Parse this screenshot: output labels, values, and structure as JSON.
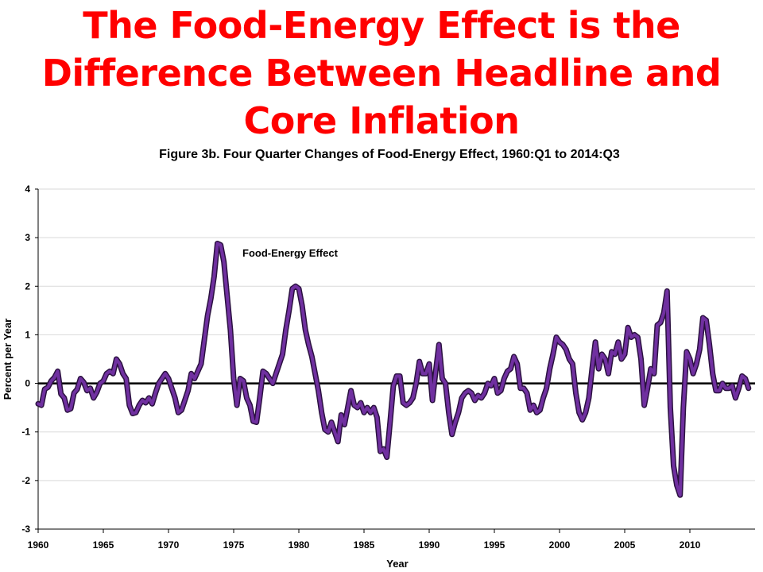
{
  "slide": {
    "title_lines": [
      "The Food-Energy Effect is the",
      "Difference Between Headline and",
      "Core Inflation"
    ]
  },
  "chart_data": {
    "type": "line",
    "title": "Figure 3b. Four Quarter Changes of Food-Energy Effect, 1960:Q1 to 2014:Q3",
    "xlabel": "Year",
    "ylabel": "Percent per Year",
    "xlim": [
      1960,
      2015
    ],
    "ylim": [
      -3,
      4
    ],
    "x_ticks": [
      1960,
      1965,
      1970,
      1975,
      1980,
      1985,
      1990,
      1995,
      2000,
      2005,
      2010
    ],
    "y_ticks": [
      4,
      3,
      2,
      1,
      0,
      -1,
      -2,
      -3
    ],
    "grid": "horizontal",
    "zero_line": true,
    "annotation": "Food-Energy Effect",
    "colors": {
      "series_fill": "#7030a0",
      "series_outline": "#2b1140",
      "gridline": "#d9d9d9",
      "zero_line": "#000000",
      "title": "#ff0000"
    },
    "series": [
      {
        "name": "Food-Energy Effect",
        "points": [
          [
            1960.0,
            -0.42
          ],
          [
            1960.25,
            -0.45
          ],
          [
            1960.5,
            -0.12
          ],
          [
            1960.75,
            -0.08
          ],
          [
            1961.0,
            0.05
          ],
          [
            1961.25,
            0.12
          ],
          [
            1961.5,
            0.25
          ],
          [
            1961.75,
            -0.22
          ],
          [
            1962.0,
            -0.3
          ],
          [
            1962.25,
            -0.55
          ],
          [
            1962.5,
            -0.52
          ],
          [
            1962.75,
            -0.2
          ],
          [
            1963.0,
            -0.12
          ],
          [
            1963.25,
            0.1
          ],
          [
            1963.5,
            0.02
          ],
          [
            1963.75,
            -0.15
          ],
          [
            1964.0,
            -0.1
          ],
          [
            1964.25,
            -0.3
          ],
          [
            1964.5,
            -0.18
          ],
          [
            1964.75,
            0.0
          ],
          [
            1965.0,
            0.05
          ],
          [
            1965.25,
            0.2
          ],
          [
            1965.5,
            0.25
          ],
          [
            1965.75,
            0.2
          ],
          [
            1966.0,
            0.5
          ],
          [
            1966.25,
            0.4
          ],
          [
            1966.5,
            0.2
          ],
          [
            1966.75,
            0.1
          ],
          [
            1967.0,
            -0.45
          ],
          [
            1967.25,
            -0.62
          ],
          [
            1967.5,
            -0.6
          ],
          [
            1967.75,
            -0.45
          ],
          [
            1968.0,
            -0.35
          ],
          [
            1968.25,
            -0.4
          ],
          [
            1968.5,
            -0.3
          ],
          [
            1968.75,
            -0.42
          ],
          [
            1969.0,
            -0.2
          ],
          [
            1969.25,
            0.0
          ],
          [
            1969.5,
            0.1
          ],
          [
            1969.75,
            0.2
          ],
          [
            1970.0,
            0.1
          ],
          [
            1970.25,
            -0.1
          ],
          [
            1970.5,
            -0.3
          ],
          [
            1970.75,
            -0.6
          ],
          [
            1971.0,
            -0.55
          ],
          [
            1971.25,
            -0.35
          ],
          [
            1971.5,
            -0.15
          ],
          [
            1971.75,
            0.2
          ],
          [
            1972.0,
            0.1
          ],
          [
            1972.25,
            0.25
          ],
          [
            1972.5,
            0.4
          ],
          [
            1972.75,
            0.9
          ],
          [
            1973.0,
            1.4
          ],
          [
            1973.25,
            1.75
          ],
          [
            1973.5,
            2.2
          ],
          [
            1973.75,
            2.88
          ],
          [
            1974.0,
            2.85
          ],
          [
            1974.25,
            2.5
          ],
          [
            1974.5,
            1.8
          ],
          [
            1974.75,
            1.1
          ],
          [
            1975.0,
            0.1
          ],
          [
            1975.25,
            -0.45
          ],
          [
            1975.5,
            0.1
          ],
          [
            1975.75,
            0.05
          ],
          [
            1976.0,
            -0.3
          ],
          [
            1976.25,
            -0.45
          ],
          [
            1976.5,
            -0.78
          ],
          [
            1976.75,
            -0.8
          ],
          [
            1977.0,
            -0.3
          ],
          [
            1977.25,
            0.25
          ],
          [
            1977.5,
            0.2
          ],
          [
            1977.75,
            0.1
          ],
          [
            1978.0,
            0.0
          ],
          [
            1978.25,
            0.2
          ],
          [
            1978.5,
            0.4
          ],
          [
            1978.75,
            0.6
          ],
          [
            1979.0,
            1.1
          ],
          [
            1979.25,
            1.5
          ],
          [
            1979.5,
            1.95
          ],
          [
            1979.75,
            2.0
          ],
          [
            1980.0,
            1.95
          ],
          [
            1980.25,
            1.6
          ],
          [
            1980.5,
            1.1
          ],
          [
            1980.75,
            0.8
          ],
          [
            1981.0,
            0.55
          ],
          [
            1981.25,
            0.2
          ],
          [
            1981.5,
            -0.15
          ],
          [
            1981.75,
            -0.6
          ],
          [
            1982.0,
            -0.95
          ],
          [
            1982.25,
            -1.0
          ],
          [
            1982.5,
            -0.8
          ],
          [
            1982.75,
            -1.0
          ],
          [
            1983.0,
            -1.2
          ],
          [
            1983.25,
            -0.65
          ],
          [
            1983.5,
            -0.85
          ],
          [
            1983.75,
            -0.5
          ],
          [
            1984.0,
            -0.15
          ],
          [
            1984.25,
            -0.45
          ],
          [
            1984.5,
            -0.5
          ],
          [
            1984.75,
            -0.4
          ],
          [
            1985.0,
            -0.6
          ],
          [
            1985.25,
            -0.5
          ],
          [
            1985.5,
            -0.6
          ],
          [
            1985.75,
            -0.5
          ],
          [
            1986.0,
            -0.7
          ],
          [
            1986.25,
            -1.4
          ],
          [
            1986.5,
            -1.35
          ],
          [
            1986.75,
            -1.52
          ],
          [
            1987.0,
            -0.8
          ],
          [
            1987.25,
            -0.05
          ],
          [
            1987.5,
            0.15
          ],
          [
            1987.75,
            0.15
          ],
          [
            1988.0,
            -0.4
          ],
          [
            1988.25,
            -0.45
          ],
          [
            1988.5,
            -0.4
          ],
          [
            1988.75,
            -0.3
          ],
          [
            1989.0,
            0.0
          ],
          [
            1989.25,
            0.45
          ],
          [
            1989.5,
            0.2
          ],
          [
            1989.75,
            0.2
          ],
          [
            1990.0,
            0.4
          ],
          [
            1990.25,
            -0.35
          ],
          [
            1990.5,
            0.25
          ],
          [
            1990.75,
            0.8
          ],
          [
            1991.0,
            0.1
          ],
          [
            1991.25,
            0.0
          ],
          [
            1991.5,
            -0.6
          ],
          [
            1991.75,
            -1.05
          ],
          [
            1992.0,
            -0.8
          ],
          [
            1992.25,
            -0.6
          ],
          [
            1992.5,
            -0.3
          ],
          [
            1992.75,
            -0.2
          ],
          [
            1993.0,
            -0.15
          ],
          [
            1993.25,
            -0.2
          ],
          [
            1993.5,
            -0.35
          ],
          [
            1993.75,
            -0.25
          ],
          [
            1994.0,
            -0.3
          ],
          [
            1994.25,
            -0.2
          ],
          [
            1994.5,
            0.0
          ],
          [
            1994.75,
            -0.05
          ],
          [
            1995.0,
            0.1
          ],
          [
            1995.25,
            -0.2
          ],
          [
            1995.5,
            -0.15
          ],
          [
            1995.75,
            0.1
          ],
          [
            1996.0,
            0.25
          ],
          [
            1996.25,
            0.3
          ],
          [
            1996.5,
            0.55
          ],
          [
            1996.75,
            0.4
          ],
          [
            1997.0,
            -0.1
          ],
          [
            1997.25,
            -0.1
          ],
          [
            1997.5,
            -0.2
          ],
          [
            1997.75,
            -0.55
          ],
          [
            1998.0,
            -0.45
          ],
          [
            1998.25,
            -0.6
          ],
          [
            1998.5,
            -0.55
          ],
          [
            1998.75,
            -0.3
          ],
          [
            1999.0,
            -0.1
          ],
          [
            1999.25,
            0.3
          ],
          [
            1999.5,
            0.6
          ],
          [
            1999.75,
            0.95
          ],
          [
            2000.0,
            0.85
          ],
          [
            2000.25,
            0.8
          ],
          [
            2000.5,
            0.7
          ],
          [
            2000.75,
            0.5
          ],
          [
            2001.0,
            0.4
          ],
          [
            2001.25,
            -0.2
          ],
          [
            2001.5,
            -0.6
          ],
          [
            2001.75,
            -0.75
          ],
          [
            2002.0,
            -0.6
          ],
          [
            2002.25,
            -0.3
          ],
          [
            2002.5,
            0.3
          ],
          [
            2002.75,
            0.85
          ],
          [
            2003.0,
            0.3
          ],
          [
            2003.25,
            0.6
          ],
          [
            2003.5,
            0.5
          ],
          [
            2003.75,
            0.2
          ],
          [
            2004.0,
            0.65
          ],
          [
            2004.25,
            0.6
          ],
          [
            2004.5,
            0.85
          ],
          [
            2004.75,
            0.5
          ],
          [
            2005.0,
            0.6
          ],
          [
            2005.25,
            1.15
          ],
          [
            2005.5,
            0.95
          ],
          [
            2005.75,
            1.0
          ],
          [
            2006.0,
            0.95
          ],
          [
            2006.25,
            0.5
          ],
          [
            2006.5,
            -0.45
          ],
          [
            2006.75,
            -0.1
          ],
          [
            2007.0,
            0.3
          ],
          [
            2007.25,
            0.2
          ],
          [
            2007.5,
            1.2
          ],
          [
            2007.75,
            1.25
          ],
          [
            2008.0,
            1.45
          ],
          [
            2008.25,
            1.9
          ],
          [
            2008.5,
            -0.5
          ],
          [
            2008.75,
            -1.7
          ],
          [
            2009.0,
            -2.1
          ],
          [
            2009.25,
            -2.3
          ],
          [
            2009.5,
            -0.5
          ],
          [
            2009.75,
            0.65
          ],
          [
            2010.0,
            0.5
          ],
          [
            2010.25,
            0.2
          ],
          [
            2010.5,
            0.4
          ],
          [
            2010.75,
            0.7
          ],
          [
            2011.0,
            1.35
          ],
          [
            2011.25,
            1.3
          ],
          [
            2011.5,
            0.8
          ],
          [
            2011.75,
            0.2
          ],
          [
            2012.0,
            -0.15
          ],
          [
            2012.25,
            -0.15
          ],
          [
            2012.5,
            0.0
          ],
          [
            2012.75,
            -0.1
          ],
          [
            2013.0,
            -0.1
          ],
          [
            2013.25,
            -0.05
          ],
          [
            2013.5,
            -0.3
          ],
          [
            2013.75,
            -0.1
          ],
          [
            2014.0,
            0.15
          ],
          [
            2014.25,
            0.1
          ],
          [
            2014.5,
            -0.1
          ]
        ]
      }
    ]
  }
}
